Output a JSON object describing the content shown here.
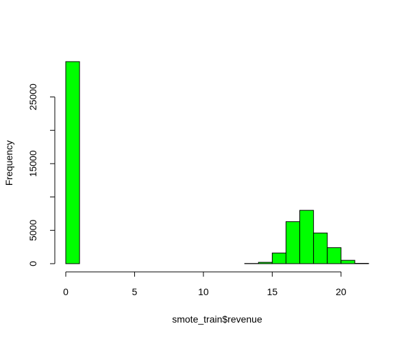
{
  "chart_data": {
    "type": "bar",
    "subtype": "histogram",
    "title": "",
    "xlabel": "smote_train$revenue",
    "ylabel": "Frequency",
    "bin_width": 1,
    "bins": [
      {
        "start": 0,
        "end": 1,
        "count": 30300
      },
      {
        "start": 1,
        "end": 2,
        "count": 0
      },
      {
        "start": 2,
        "end": 3,
        "count": 0
      },
      {
        "start": 3,
        "end": 4,
        "count": 0
      },
      {
        "start": 4,
        "end": 5,
        "count": 0
      },
      {
        "start": 5,
        "end": 6,
        "count": 0
      },
      {
        "start": 6,
        "end": 7,
        "count": 0
      },
      {
        "start": 7,
        "end": 8,
        "count": 0
      },
      {
        "start": 8,
        "end": 9,
        "count": 0
      },
      {
        "start": 9,
        "end": 10,
        "count": 0
      },
      {
        "start": 10,
        "end": 11,
        "count": 0
      },
      {
        "start": 11,
        "end": 12,
        "count": 0
      },
      {
        "start": 12,
        "end": 13,
        "count": 0
      },
      {
        "start": 13,
        "end": 14,
        "count": 30
      },
      {
        "start": 14,
        "end": 15,
        "count": 200
      },
      {
        "start": 15,
        "end": 16,
        "count": 1600
      },
      {
        "start": 16,
        "end": 17,
        "count": 6300
      },
      {
        "start": 17,
        "end": 18,
        "count": 8000
      },
      {
        "start": 18,
        "end": 19,
        "count": 4600
      },
      {
        "start": 19,
        "end": 20,
        "count": 2400
      },
      {
        "start": 20,
        "end": 21,
        "count": 500
      },
      {
        "start": 21,
        "end": 22,
        "count": 50
      }
    ],
    "xlim": [
      0,
      22
    ],
    "ylim": [
      0,
      30300
    ],
    "x_ticks": [
      0,
      5,
      10,
      15,
      20
    ],
    "x_tick_labels": [
      "0",
      "5",
      "10",
      "15",
      "20"
    ],
    "y_ticks": [
      0,
      5000,
      10000,
      15000,
      20000,
      25000
    ],
    "y_tick_labels": [
      "0",
      "5000",
      "",
      "15000",
      "",
      "25000"
    ],
    "bar_color": "#00ff00",
    "grid": false
  }
}
